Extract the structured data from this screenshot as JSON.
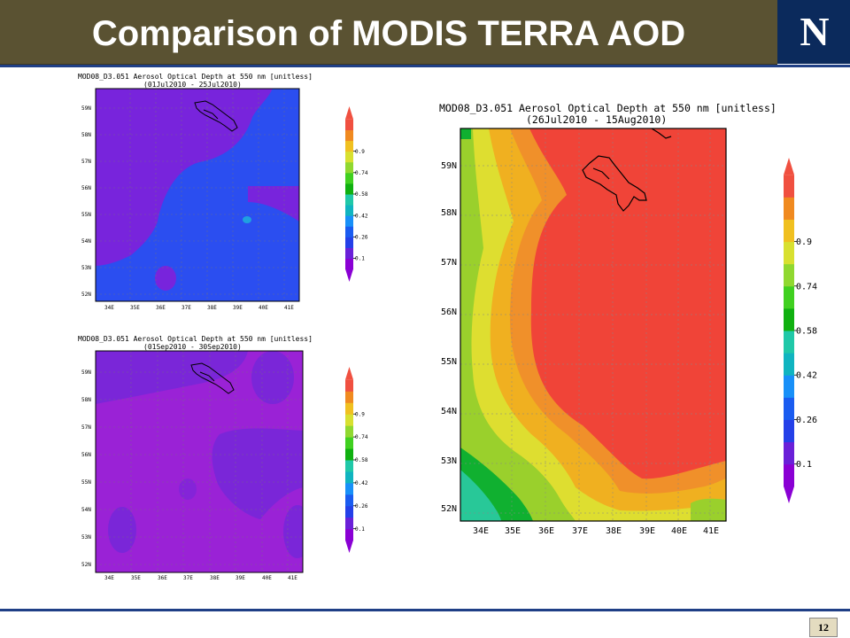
{
  "slide": {
    "title": "Comparison of MODIS TERRA AOD",
    "logo": "N",
    "page_number": "12"
  },
  "colors": {
    "header_bg": "#5a5232",
    "logo_bg": "#0b2a5c",
    "rule": "#1f3f86"
  },
  "chart_data": [
    {
      "type": "heatmap",
      "title": "MOD08_D3.051 Aerosol Optical Depth at 550 nm [unitless]",
      "subtitle": "(01Jul2010 - 25Jul2010)",
      "x_ticks": [
        "34E",
        "35E",
        "36E",
        "37E",
        "38E",
        "39E",
        "40E",
        "41E"
      ],
      "y_ticks": [
        "52N",
        "53N",
        "54N",
        "55N",
        "56N",
        "57N",
        "58N",
        "59N"
      ],
      "xlim": [
        33.5,
        41.5
      ],
      "ylim": [
        51.7,
        59.6
      ],
      "colorbar_levels": [
        "0.1",
        "0.26",
        "0.42",
        "0.58",
        "0.74",
        "0.9"
      ],
      "colorbar_colors": [
        "#8a00d4",
        "#6a20d8",
        "#2440e8",
        "#1a5cf0",
        "#1890f8",
        "#10b4c0",
        "#20c8a8",
        "#10b010",
        "#40d020",
        "#90d830",
        "#d8e030",
        "#f0c020",
        "#f08a20",
        "#f05040"
      ],
      "dominant_range": "0.1-0.26"
    },
    {
      "type": "heatmap",
      "title": "MOD08_D3.051 Aerosol Optical Depth at 550 nm [unitless]",
      "subtitle": "(01Sep2010 - 30Sep2010)",
      "x_ticks": [
        "34E",
        "35E",
        "36E",
        "37E",
        "38E",
        "39E",
        "40E",
        "41E"
      ],
      "y_ticks": [
        "52N",
        "53N",
        "54N",
        "55N",
        "56N",
        "57N",
        "58N",
        "59N"
      ],
      "xlim": [
        33.5,
        41.5
      ],
      "ylim": [
        51.7,
        59.6
      ],
      "colorbar_levels": [
        "0.1",
        "0.26",
        "0.42",
        "0.58",
        "0.74",
        "0.9"
      ],
      "colorbar_colors": [
        "#8a00d4",
        "#6a20d8",
        "#2440e8",
        "#1a5cf0",
        "#1890f8",
        "#10b4c0",
        "#20c8a8",
        "#10b010",
        "#40d020",
        "#90d830",
        "#d8e030",
        "#f0c020",
        "#f08a20",
        "#f05040"
      ],
      "dominant_range": "0.1"
    },
    {
      "type": "heatmap",
      "title": "MOD08_D3.051 Aerosol Optical Depth at 550 nm [unitless]",
      "subtitle": "(26Jul2010 - 15Aug2010)",
      "x_ticks": [
        "34E",
        "35E",
        "36E",
        "37E",
        "38E",
        "39E",
        "40E",
        "41E"
      ],
      "y_ticks": [
        "52N",
        "53N",
        "54N",
        "55N",
        "56N",
        "57N",
        "58N",
        "59N"
      ],
      "xlim": [
        33.5,
        41.5
      ],
      "ylim": [
        51.7,
        59.6
      ],
      "colorbar_levels": [
        "0.1",
        "0.26",
        "0.42",
        "0.58",
        "0.74",
        "0.9"
      ],
      "colorbar_colors": [
        "#8a00d4",
        "#6a20d8",
        "#2440e8",
        "#1a5cf0",
        "#1890f8",
        "#10b4c0",
        "#20c8a8",
        "#10b010",
        "#40d020",
        "#90d830",
        "#d8e030",
        "#f0c020",
        "#f08a20",
        "#f05040"
      ],
      "dominant_range": "> 0.9"
    }
  ]
}
